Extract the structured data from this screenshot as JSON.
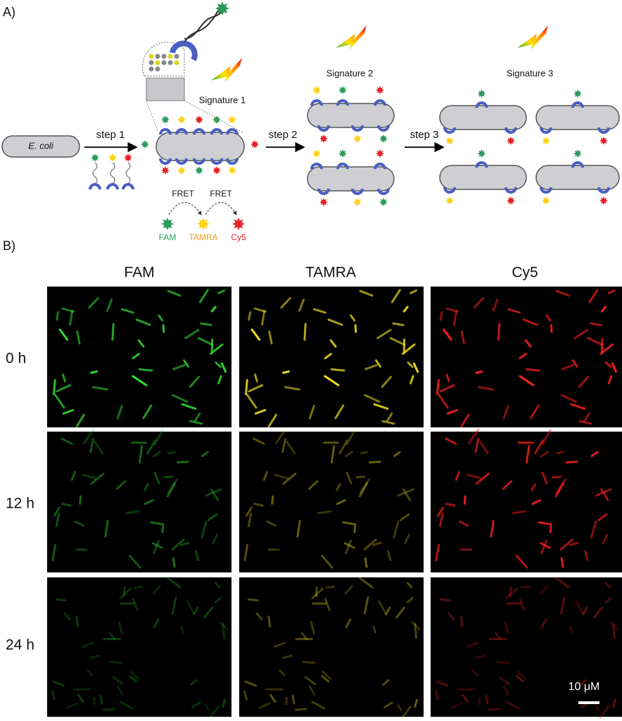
{
  "panel_a": {
    "label": "A)",
    "cell_label": "E. coli",
    "steps": [
      "step 1",
      "step 2",
      "step 3"
    ],
    "signatures": [
      "Signature 1",
      "Signature 2",
      "Signature 3"
    ],
    "fret": [
      "FRET",
      "FRET"
    ],
    "dyes": [
      "FAM",
      "TAMRA",
      "Cy5"
    ]
  },
  "panel_b": {
    "label": "B)",
    "columns": [
      "FAM",
      "TAMRA",
      "Cy5"
    ],
    "rows": [
      "0 h",
      "12 h",
      "24 h"
    ],
    "scale_bar": "10 μM"
  }
}
